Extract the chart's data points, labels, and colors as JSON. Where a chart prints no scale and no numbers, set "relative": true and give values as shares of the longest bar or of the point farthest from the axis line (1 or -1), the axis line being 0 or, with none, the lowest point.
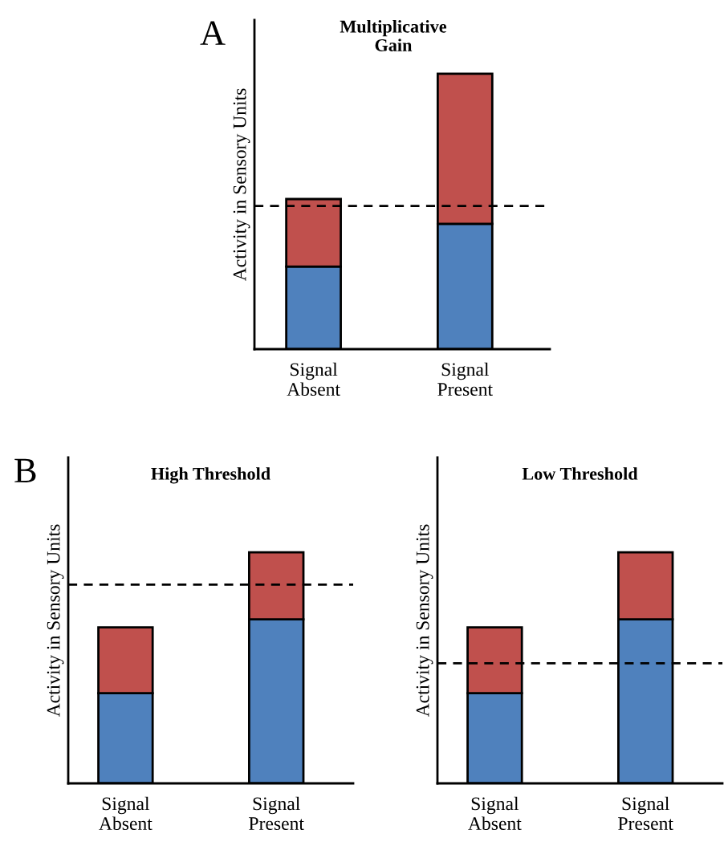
{
  "chart_data": [
    {
      "type": "bar",
      "title": "Multiplicative\nGain",
      "ylabel": "Activity in Sensory Units",
      "categories": [
        "Signal\nAbsent",
        "Signal\nPresent"
      ],
      "stacked": true,
      "relative": true,
      "tick_labels": "x",
      "annotations": [
        "A"
      ],
      "series": [
        {
          "color": "#4f81bd",
          "values": [
            0.3,
            0.455
          ]
        },
        {
          "color": "#c0504d",
          "values": [
            0.245,
            0.545
          ]
        }
      ],
      "ref_lines": [
        {
          "axis": "y",
          "value": 0.52,
          "line_style": "dashed",
          "color": "#000000"
        }
      ]
    },
    {
      "type": "bar",
      "title": "High Threshold",
      "ylabel": "Activity in Sensory Units",
      "categories": [
        "Signal\nAbsent",
        "Signal\nPresent"
      ],
      "stacked": true,
      "relative": true,
      "tick_labels": "x",
      "annotations": [
        "B"
      ],
      "series": [
        {
          "color": "#4f81bd",
          "values": [
            0.39,
            0.71
          ]
        },
        {
          "color": "#c0504d",
          "values": [
            0.285,
            0.29
          ]
        }
      ],
      "ref_lines": [
        {
          "axis": "y",
          "value": 0.86,
          "line_style": "dashed",
          "color": "#000000"
        }
      ]
    },
    {
      "type": "bar",
      "title": "Low Threshold",
      "ylabel": "Activity in Sensory Units",
      "categories": [
        "Signal\nAbsent",
        "Signal\nPresent"
      ],
      "stacked": true,
      "relative": true,
      "tick_labels": "x",
      "series": [
        {
          "color": "#4f81bd",
          "values": [
            0.39,
            0.71
          ]
        },
        {
          "color": "#c0504d",
          "values": [
            0.285,
            0.29
          ]
        }
      ],
      "ref_lines": [
        {
          "axis": "y",
          "value": 0.52,
          "line_style": "dashed",
          "color": "#000000"
        }
      ]
    }
  ]
}
